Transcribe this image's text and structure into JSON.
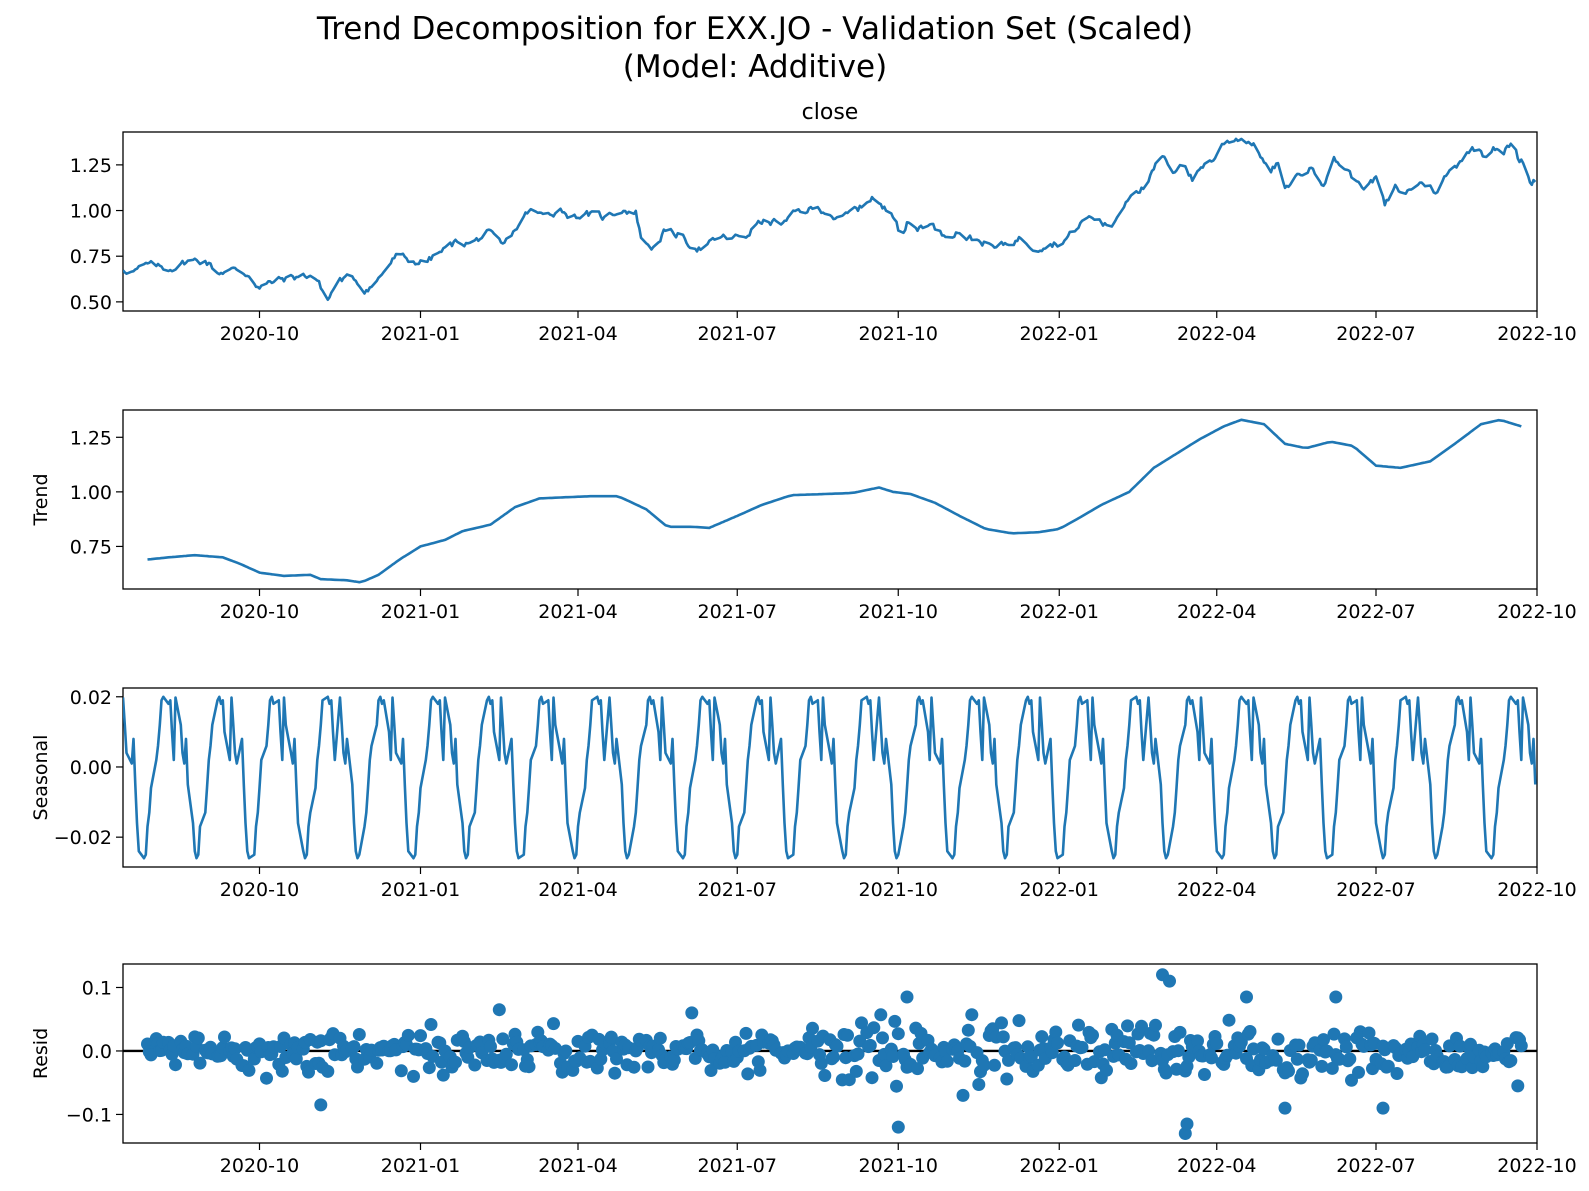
{
  "figure": {
    "title_line1": "Trend Decomposition for EXX.JO - Validation Set (Scaled)",
    "title_line2": "(Model: Additive)",
    "line_color": "#1f77b4",
    "zero_line_color": "#000000"
  },
  "chart_data": [
    {
      "type": "line",
      "panel": "close",
      "title": "close",
      "ylabel": "",
      "x_range": [
        "2020-07-15",
        "2022-10-01"
      ],
      "ylim": [
        0.45,
        1.43
      ],
      "yticks": [
        0.5,
        0.75,
        1.0,
        1.25
      ],
      "ytick_labels": [
        "0.50",
        "0.75",
        "1.00",
        "1.25"
      ],
      "xticks": [
        "2020-10-01",
        "2021-01-01",
        "2021-04-01",
        "2021-07-01",
        "2021-10-01",
        "2022-01-01",
        "2022-04-01",
        "2022-07-01",
        "2022-10-01"
      ],
      "xtick_labels": [
        "2020-10",
        "2021-01",
        "2021-04",
        "2021-07",
        "2021-10",
        "2022-01",
        "2022-04",
        "2022-07",
        "2022-10"
      ],
      "series": [
        {
          "values_key_points": [
            [
              "2020-07-15",
              0.68
            ],
            [
              "2020-07-22",
              0.67
            ],
            [
              "2020-07-29",
              0.7
            ],
            [
              "2020-08-10",
              0.68
            ],
            [
              "2020-08-20",
              0.72
            ],
            [
              "2020-08-31",
              0.73
            ],
            [
              "2020-09-07",
              0.66
            ],
            [
              "2020-09-14",
              0.68
            ],
            [
              "2020-09-25",
              0.65
            ],
            [
              "2020-10-01",
              0.58
            ],
            [
              "2020-10-12",
              0.62
            ],
            [
              "2020-10-24",
              0.64
            ],
            [
              "2020-11-01",
              0.65
            ],
            [
              "2020-11-05",
              0.58
            ],
            [
              "2020-11-09",
              0.51
            ],
            [
              "2020-11-15",
              0.62
            ],
            [
              "2020-11-24",
              0.63
            ],
            [
              "2020-11-30",
              0.57
            ],
            [
              "2020-12-06",
              0.6
            ],
            [
              "2020-12-12",
              0.68
            ],
            [
              "2020-12-18",
              0.75
            ],
            [
              "2020-12-28",
              0.72
            ],
            [
              "2021-01-04",
              0.72
            ],
            [
              "2021-01-14",
              0.78
            ],
            [
              "2021-01-22",
              0.83
            ],
            [
              "2021-01-31",
              0.82
            ],
            [
              "2021-02-08",
              0.88
            ],
            [
              "2021-02-17",
              0.8
            ],
            [
              "2021-02-26",
              0.92
            ],
            [
              "2021-03-04",
              1.0
            ],
            [
              "2021-03-12",
              0.97
            ],
            [
              "2021-03-22",
              1.01
            ],
            [
              "2021-03-28",
              0.97
            ],
            [
              "2021-04-06",
              0.98
            ],
            [
              "2021-04-16",
              0.96
            ],
            [
              "2021-04-26",
              1.01
            ],
            [
              "2021-05-04",
              0.99
            ],
            [
              "2021-05-08",
              0.82
            ],
            [
              "2021-05-14",
              0.8
            ],
            [
              "2021-05-20",
              0.88
            ],
            [
              "2021-05-28",
              0.87
            ],
            [
              "2021-06-05",
              0.81
            ],
            [
              "2021-06-12",
              0.79
            ],
            [
              "2021-06-20",
              0.85
            ],
            [
              "2021-06-30",
              0.85
            ],
            [
              "2021-07-06",
              0.86
            ],
            [
              "2021-07-12",
              0.93
            ],
            [
              "2021-07-20",
              0.94
            ],
            [
              "2021-07-28",
              0.93
            ],
            [
              "2021-08-04",
              0.99
            ],
            [
              "2021-08-14",
              1.01
            ],
            [
              "2021-08-22",
              1.0
            ],
            [
              "2021-08-28",
              0.94
            ],
            [
              "2021-09-04",
              0.99
            ],
            [
              "2021-09-10",
              1.02
            ],
            [
              "2021-09-16",
              1.08
            ],
            [
              "2021-09-22",
              1.01
            ],
            [
              "2021-09-30",
              0.97
            ],
            [
              "2021-10-02",
              0.86
            ],
            [
              "2021-10-06",
              0.93
            ],
            [
              "2021-10-12",
              0.9
            ],
            [
              "2021-10-18",
              0.94
            ],
            [
              "2021-10-26",
              0.87
            ],
            [
              "2021-11-05",
              0.89
            ],
            [
              "2021-11-10",
              0.85
            ],
            [
              "2021-11-18",
              0.83
            ],
            [
              "2021-11-26",
              0.79
            ],
            [
              "2021-12-02",
              0.82
            ],
            [
              "2021-12-10",
              0.85
            ],
            [
              "2021-12-18",
              0.8
            ],
            [
              "2021-12-26",
              0.82
            ],
            [
              "2022-01-03",
              0.83
            ],
            [
              "2022-01-10",
              0.89
            ],
            [
              "2022-01-16",
              0.96
            ],
            [
              "2022-01-22",
              0.96
            ],
            [
              "2022-01-30",
              0.9
            ],
            [
              "2022-02-06",
              1.02
            ],
            [
              "2022-02-12",
              1.12
            ],
            [
              "2022-02-20",
              1.13
            ],
            [
              "2022-02-25",
              1.24
            ],
            [
              "2022-03-02",
              1.29
            ],
            [
              "2022-03-06",
              1.17
            ],
            [
              "2022-03-12",
              1.29
            ],
            [
              "2022-03-18",
              1.17
            ],
            [
              "2022-03-24",
              1.25
            ],
            [
              "2022-03-30",
              1.28
            ],
            [
              "2022-04-05",
              1.37
            ],
            [
              "2022-04-12",
              1.4
            ],
            [
              "2022-04-20",
              1.38
            ],
            [
              "2022-04-26",
              1.31
            ],
            [
              "2022-05-01",
              1.2
            ],
            [
              "2022-05-06",
              1.26
            ],
            [
              "2022-05-10",
              1.1
            ],
            [
              "2022-05-14",
              1.17
            ],
            [
              "2022-05-20",
              1.21
            ],
            [
              "2022-05-26",
              1.23
            ],
            [
              "2022-06-01",
              1.16
            ],
            [
              "2022-06-07",
              1.28
            ],
            [
              "2022-06-14",
              1.23
            ],
            [
              "2022-06-20",
              1.15
            ],
            [
              "2022-06-26",
              1.14
            ],
            [
              "2022-07-02",
              1.18
            ],
            [
              "2022-07-06",
              1.02
            ],
            [
              "2022-07-12",
              1.12
            ],
            [
              "2022-07-18",
              1.09
            ],
            [
              "2022-07-24",
              1.15
            ],
            [
              "2022-07-30",
              1.15
            ],
            [
              "2022-08-05",
              1.1
            ],
            [
              "2022-08-10",
              1.19
            ],
            [
              "2022-08-16",
              1.25
            ],
            [
              "2022-08-22",
              1.33
            ],
            [
              "2022-08-28",
              1.34
            ],
            [
              "2022-09-01",
              1.3
            ],
            [
              "2022-09-06",
              1.36
            ],
            [
              "2022-09-12",
              1.33
            ],
            [
              "2022-09-17",
              1.37
            ],
            [
              "2022-09-21",
              1.26
            ],
            [
              "2022-09-24",
              1.27
            ],
            [
              "2022-09-27",
              1.15
            ],
            [
              "2022-10-01",
              1.17
            ]
          ]
        }
      ]
    },
    {
      "type": "line",
      "panel": "trend",
      "ylabel": "Trend",
      "x_range": [
        "2020-07-15",
        "2022-10-01"
      ],
      "ylim": [
        0.555,
        1.375
      ],
      "yticks": [
        0.75,
        1.0,
        1.25
      ],
      "ytick_labels": [
        "0.75",
        "1.00",
        "1.25"
      ],
      "xticks": [
        "2020-10-01",
        "2021-01-01",
        "2021-04-01",
        "2021-07-01",
        "2021-10-01",
        "2022-01-01",
        "2022-04-01",
        "2022-07-01",
        "2022-10-01"
      ],
      "xtick_labels": [
        "2020-10",
        "2021-01",
        "2021-04",
        "2021-07",
        "2021-10",
        "2022-01",
        "2022-04",
        "2022-07",
        "2022-10"
      ],
      "series": [
        {
          "values_key_points": [
            [
              "2020-07-29",
              0.69
            ],
            [
              "2020-08-10",
              0.7
            ],
            [
              "2020-08-25",
              0.71
            ],
            [
              "2020-09-10",
              0.7
            ],
            [
              "2020-09-20",
              0.67
            ],
            [
              "2020-10-01",
              0.63
            ],
            [
              "2020-10-15",
              0.615
            ],
            [
              "2020-10-30",
              0.62
            ],
            [
              "2020-11-05",
              0.6
            ],
            [
              "2020-11-20",
              0.595
            ],
            [
              "2020-11-28",
              0.585
            ],
            [
              "2020-12-08",
              0.62
            ],
            [
              "2020-12-20",
              0.69
            ],
            [
              "2021-01-01",
              0.75
            ],
            [
              "2021-01-15",
              0.78
            ],
            [
              "2021-01-25",
              0.82
            ],
            [
              "2021-02-10",
              0.85
            ],
            [
              "2021-02-24",
              0.93
            ],
            [
              "2021-03-10",
              0.97
            ],
            [
              "2021-03-24",
              0.975
            ],
            [
              "2021-04-08",
              0.98
            ],
            [
              "2021-04-24",
              0.98
            ],
            [
              "2021-05-10",
              0.92
            ],
            [
              "2021-05-22",
              0.84
            ],
            [
              "2021-06-05",
              0.84
            ],
            [
              "2021-06-15",
              0.835
            ],
            [
              "2021-07-01",
              0.89
            ],
            [
              "2021-07-15",
              0.94
            ],
            [
              "2021-08-01",
              0.985
            ],
            [
              "2021-08-20",
              0.99
            ],
            [
              "2021-09-05",
              0.995
            ],
            [
              "2021-09-20",
              1.02
            ],
            [
              "2021-09-28",
              1.0
            ],
            [
              "2021-10-08",
              0.99
            ],
            [
              "2021-10-22",
              0.95
            ],
            [
              "2021-11-05",
              0.89
            ],
            [
              "2021-11-20",
              0.83
            ],
            [
              "2021-12-05",
              0.81
            ],
            [
              "2021-12-20",
              0.815
            ],
            [
              "2022-01-01",
              0.83
            ],
            [
              "2022-01-10",
              0.87
            ],
            [
              "2022-01-25",
              0.94
            ],
            [
              "2022-02-10",
              1.0
            ],
            [
              "2022-02-24",
              1.11
            ],
            [
              "2022-03-08",
              1.17
            ],
            [
              "2022-03-22",
              1.24
            ],
            [
              "2022-04-05",
              1.3
            ],
            [
              "2022-04-15",
              1.33
            ],
            [
              "2022-04-28",
              1.31
            ],
            [
              "2022-05-10",
              1.22
            ],
            [
              "2022-05-22",
              1.2
            ],
            [
              "2022-06-05",
              1.23
            ],
            [
              "2022-06-18",
              1.21
            ],
            [
              "2022-07-01",
              1.12
            ],
            [
              "2022-07-15",
              1.11
            ],
            [
              "2022-08-01",
              1.14
            ],
            [
              "2022-08-15",
              1.22
            ],
            [
              "2022-08-30",
              1.31
            ],
            [
              "2022-09-10",
              1.33
            ],
            [
              "2022-09-22",
              1.3
            ]
          ]
        }
      ]
    },
    {
      "type": "line",
      "panel": "seasonal",
      "ylabel": "Seasonal",
      "x_range": [
        "2020-07-15",
        "2022-10-01"
      ],
      "ylim": [
        -0.0285,
        0.0225
      ],
      "yticks": [
        -0.02,
        0.0,
        0.02
      ],
      "ytick_labels": [
        "−0.02",
        "0.00",
        "0.02"
      ],
      "xticks": [
        "2020-10-01",
        "2021-01-01",
        "2021-04-01",
        "2021-07-01",
        "2021-10-01",
        "2022-01-01",
        "2022-04-01",
        "2022-07-01",
        "2022-10-01"
      ],
      "xtick_labels": [
        "2020-10",
        "2021-01",
        "2021-04",
        "2021-07",
        "2021-10",
        "2022-01",
        "2022-04",
        "2022-07",
        "2022-10"
      ],
      "period_trading_days": 22,
      "pattern_cycle": [
        0.0198,
        0.012,
        0.004,
        0.001,
        0.008,
        -0.005,
        -0.016,
        -0.024,
        -0.026,
        -0.025,
        -0.017,
        -0.013,
        -0.006,
        0.002,
        0.006,
        0.012,
        0.019,
        0.02,
        0.018,
        0.019,
        0.01,
        0.002
      ]
    },
    {
      "type": "scatter",
      "panel": "resid",
      "ylabel": "Resid",
      "x_range": [
        "2020-07-15",
        "2022-10-01"
      ],
      "ylim": [
        -0.145,
        0.137
      ],
      "yticks": [
        -0.1,
        0.0,
        0.1
      ],
      "ytick_labels": [
        "−0.1",
        "0.0",
        "0.1"
      ],
      "xticks": [
        "2020-10-01",
        "2021-01-01",
        "2021-04-01",
        "2021-07-01",
        "2021-10-01",
        "2022-01-01",
        "2022-04-01",
        "2022-07-01",
        "2022-10-01"
      ],
      "xtick_labels": [
        "2020-10",
        "2021-01",
        "2021-04",
        "2021-07",
        "2021-10",
        "2022-01",
        "2022-04",
        "2022-07",
        "2022-10"
      ],
      "zero_line": 0.0,
      "amplitude_envelope": [
        [
          "2020-07-29",
          0.03
        ],
        [
          "2020-10-01",
          0.045
        ],
        [
          "2021-01-01",
          0.05
        ],
        [
          "2021-04-01",
          0.05
        ],
        [
          "2021-07-01",
          0.05
        ],
        [
          "2021-10-01",
          0.07
        ],
        [
          "2022-01-01",
          0.05
        ],
        [
          "2022-03-01",
          0.08
        ],
        [
          "2022-04-01",
          0.06
        ],
        [
          "2022-07-01",
          0.06
        ],
        [
          "2022-09-22",
          0.04
        ]
      ],
      "notable_points": [
        [
          "2021-10-01",
          -0.12
        ],
        [
          "2021-10-06",
          0.085
        ],
        [
          "2021-11-07",
          -0.07
        ],
        [
          "2022-03-01",
          0.12
        ],
        [
          "2022-03-05",
          0.11
        ],
        [
          "2022-03-14",
          -0.13
        ],
        [
          "2022-03-15",
          -0.115
        ],
        [
          "2022-04-18",
          0.085
        ],
        [
          "2022-05-10",
          -0.09
        ],
        [
          "2022-06-08",
          0.085
        ],
        [
          "2022-07-05",
          -0.09
        ],
        [
          "2022-09-20",
          -0.055
        ],
        [
          "2020-11-05",
          -0.085
        ],
        [
          "2021-02-15",
          0.065
        ],
        [
          "2021-06-05",
          0.06
        ]
      ]
    }
  ]
}
